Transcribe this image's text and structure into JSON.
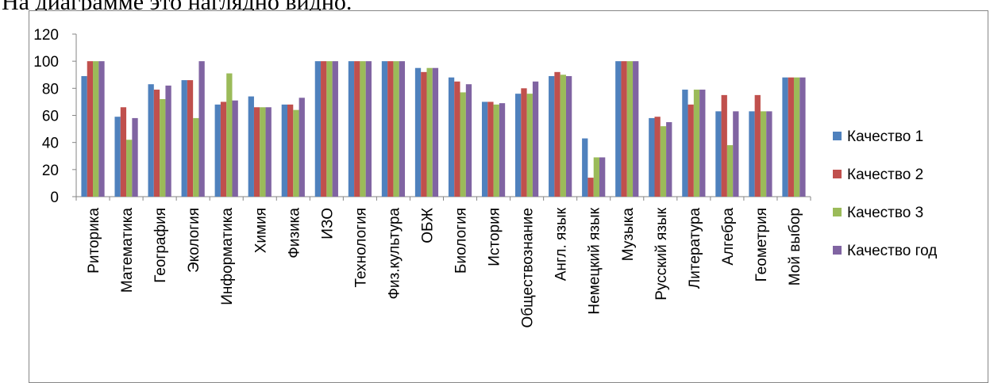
{
  "caption": "На диаграмме это наглядно видно.",
  "chart_data": {
    "type": "bar",
    "categories": [
      "Риторика",
      "Математика",
      "География",
      "Экология",
      "Информатика",
      "Химия",
      "Физика",
      "ИЗО",
      "Технология",
      "Физ.культура",
      "ОБЖ",
      "Биология",
      "История",
      "Обществознание",
      "Англ. язык",
      "Немецкий язык",
      "Музыка",
      "Русский язык",
      "Литература",
      "Алгебра",
      "Геометрия",
      "Мой выбор"
    ],
    "series": [
      {
        "name": "Качество 1",
        "color": "#4f81bd",
        "values": [
          89,
          59,
          83,
          86,
          68,
          74,
          68,
          100,
          100,
          100,
          95,
          88,
          70,
          76,
          89,
          43,
          100,
          58,
          79,
          63,
          63,
          88
        ]
      },
      {
        "name": "Качество 2",
        "color": "#c0504d",
        "values": [
          100,
          66,
          79,
          86,
          70,
          66,
          68,
          100,
          100,
          100,
          92,
          85,
          70,
          80,
          92,
          14,
          100,
          59,
          68,
          75,
          75,
          88
        ]
      },
      {
        "name": "Качество 3",
        "color": "#9bbb59",
        "values": [
          100,
          42,
          72,
          58,
          91,
          66,
          64,
          100,
          100,
          100,
          95,
          77,
          68,
          76,
          90,
          29,
          100,
          52,
          79,
          38,
          63,
          88
        ]
      },
      {
        "name": "Качество год",
        "color": "#8064a2",
        "values": [
          100,
          58,
          82,
          100,
          71,
          66,
          73,
          100,
          100,
          100,
          95,
          83,
          69,
          85,
          89,
          29,
          100,
          55,
          79,
          63,
          63,
          88
        ]
      }
    ],
    "y_ticks": [
      "0",
      "20",
      "40",
      "60",
      "80",
      "100",
      "120"
    ],
    "ylim": [
      0,
      120
    ],
    "legend_position": "right",
    "grid": false
  }
}
